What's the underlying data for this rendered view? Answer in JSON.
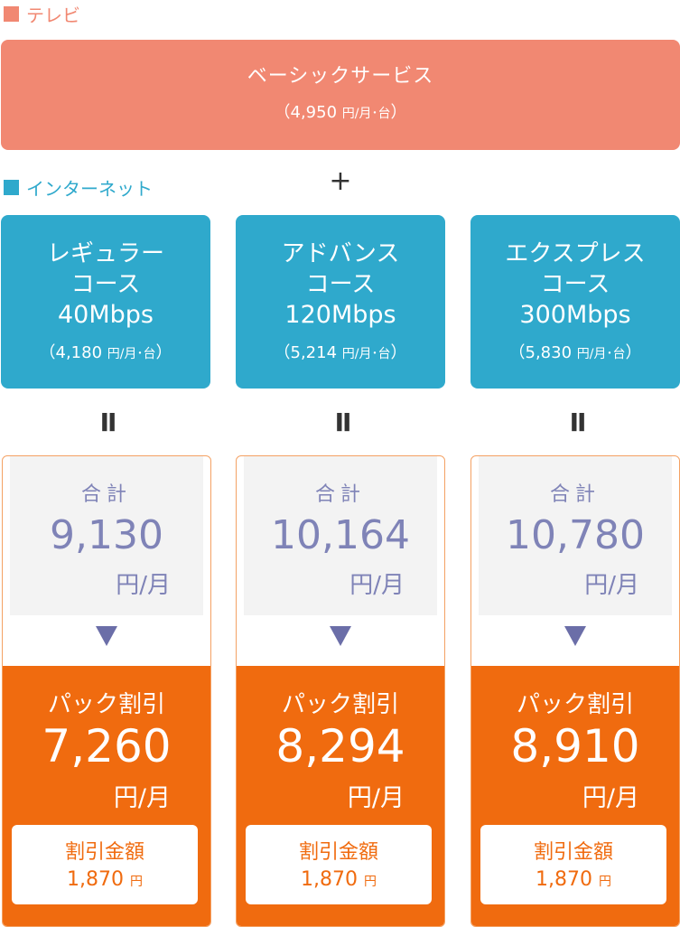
{
  "tv": {
    "section_label": "テレビ",
    "service_name": "ベーシックサービス",
    "price_open": "（4,950 ",
    "price_unit": "円/月･台",
    "price_close": "）"
  },
  "plus_sign": "+",
  "internet": {
    "section_label": "インターネット",
    "courses": [
      {
        "line1": "レギュラー",
        "line2": "コース",
        "speed": "40Mbps",
        "price_open": "（4,180 ",
        "price_unit": "円/月･台",
        "price_close": "）"
      },
      {
        "line1": "アドバンス",
        "line2": "コース",
        "speed": "120Mbps",
        "price_open": "（5,214 ",
        "price_unit": "円/月･台",
        "price_close": "）"
      },
      {
        "line1": "エクスプレス",
        "line2": "コース",
        "speed": "300Mbps",
        "price_open": "（5,830 ",
        "price_unit": "円/月･台",
        "price_close": "）"
      }
    ]
  },
  "equals_sign": "II",
  "totals": [
    {
      "label": "合計",
      "value": "9,130",
      "unit": "円/月",
      "pack_label": "パック割引",
      "pack_value": "7,260",
      "pack_unit": "円/月",
      "discount_label": "割引金額",
      "discount_value": "1,870 ",
      "discount_unit": "円"
    },
    {
      "label": "合計",
      "value": "10,164",
      "unit": "円/月",
      "pack_label": "パック割引",
      "pack_value": "8,294",
      "pack_unit": "円/月",
      "discount_label": "割引金額",
      "discount_value": "1,870 ",
      "discount_unit": "円"
    },
    {
      "label": "合計",
      "value": "10,780",
      "unit": "円/月",
      "pack_label": "パック割引",
      "pack_value": "8,910",
      "pack_unit": "円/月",
      "discount_label": "割引金額",
      "discount_value": "1,870 ",
      "discount_unit": "円"
    }
  ],
  "colors": {
    "tv": "#f18872",
    "internet": "#2fa9cc",
    "total_text": "#7f83b7",
    "arrow": "#6b6ea8",
    "pack": "#f06b0f"
  },
  "icons": {
    "section_marker": "square-icon",
    "arrow": "triangle-down-icon"
  }
}
